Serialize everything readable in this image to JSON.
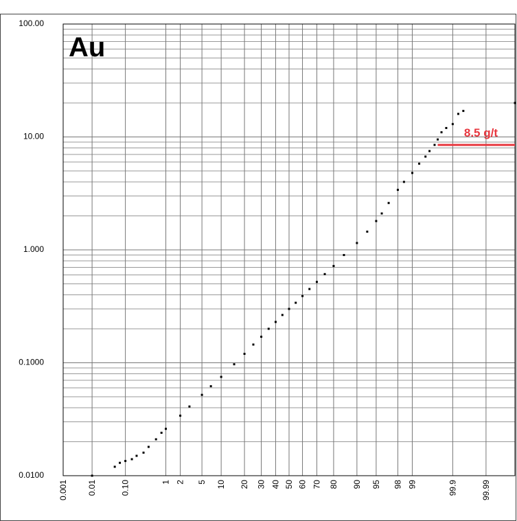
{
  "chart_data": {
    "type": "probability-scatter",
    "annotation": "Au",
    "color": "#000000",
    "x": [
      0.01,
      0.05,
      0.07,
      0.1,
      0.15,
      0.2,
      0.3,
      0.4,
      0.6,
      0.8,
      1,
      2,
      3,
      5,
      7,
      10,
      15,
      20,
      25,
      30,
      35,
      40,
      45,
      50,
      55,
      60,
      65,
      70,
      75,
      80,
      85,
      90,
      93,
      95,
      96,
      97,
      98,
      98.5,
      99,
      99.3,
      99.5,
      99.6,
      99.7,
      99.75,
      99.8,
      99.85,
      99.9,
      99.93,
      99.95,
      99.999
    ],
    "values": [
      0.01,
      0.012,
      0.013,
      0.0135,
      0.014,
      0.015,
      0.016,
      0.018,
      0.021,
      0.024,
      0.026,
      0.034,
      0.041,
      0.052,
      0.062,
      0.075,
      0.097,
      0.12,
      0.145,
      0.17,
      0.2,
      0.23,
      0.265,
      0.3,
      0.34,
      0.39,
      0.45,
      0.52,
      0.61,
      0.72,
      0.9,
      1.15,
      1.45,
      1.8,
      2.1,
      2.6,
      3.4,
      4.0,
      4.8,
      5.8,
      6.7,
      7.5,
      8.5,
      9.5,
      11,
      12,
      13,
      16,
      17,
      20
    ],
    "xscale": "probability",
    "xlim": [
      0.001,
      99.999
    ],
    "xticks": [
      0.001,
      0.01,
      {
        "value": 0.1,
        "label": "0.10"
      },
      1,
      2,
      5,
      10,
      20,
      30,
      40,
      50,
      60,
      70,
      80,
      90,
      95,
      98,
      99,
      99.9,
      99.99
    ],
    "yscale": "log",
    "ylim": [
      0.01,
      100
    ],
    "yticks": [
      {
        "value": 0.01,
        "label": "0.0100"
      },
      {
        "value": 0.1,
        "label": "0.1000"
      },
      {
        "value": 1,
        "label": "1.000"
      },
      {
        "value": 10,
        "label": "10.00"
      },
      {
        "value": 100,
        "label": "100.00"
      }
    ],
    "grid": true,
    "minor_grid": true,
    "threshold": {
      "value": 8.5,
      "label": "8.5 g/t",
      "x_start": 99.75,
      "color": "#e8373f"
    }
  }
}
